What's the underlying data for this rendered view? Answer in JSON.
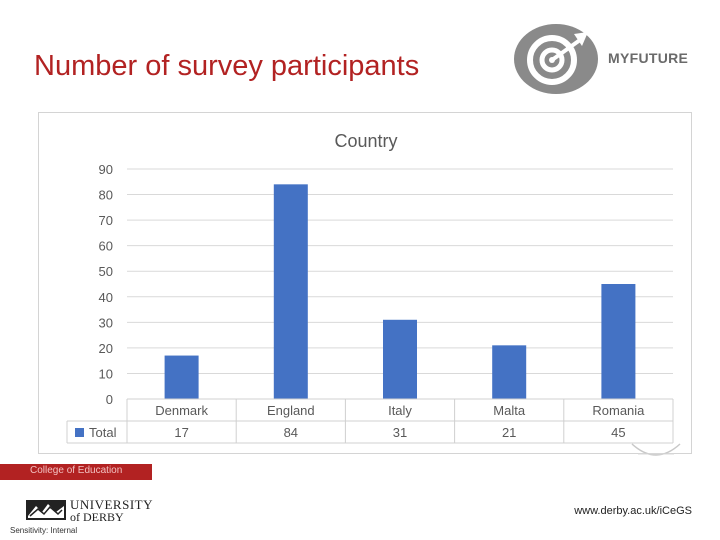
{
  "slide": {
    "title": "Number of survey participants",
    "divider_label": "College of Education",
    "footer_url": "www.derby.ac.uk/iCeGS",
    "sensitivity": "Sensitivity: Internal"
  },
  "logo": {
    "text": "MYFUTURE",
    "icon": "target-arrow-icon"
  },
  "university": {
    "line1": "UNIVERSITY",
    "line2": "of DERBY",
    "icon": "university-crest-icon"
  },
  "colors": {
    "title": "#b22222",
    "bar": "#4472c4",
    "divider": "#b22222"
  },
  "chart_data": {
    "type": "bar",
    "title": "Country",
    "categories": [
      "Denmark",
      "England",
      "Italy",
      "Malta",
      "Romania"
    ],
    "series": [
      {
        "name": "Total",
        "values": [
          17,
          84,
          31,
          21,
          45
        ]
      }
    ],
    "ylim": [
      0,
      90
    ],
    "yticks": [
      0,
      10,
      20,
      30,
      40,
      50,
      60,
      70,
      80,
      90
    ],
    "grid": true,
    "legend": "data-table-bottom"
  }
}
